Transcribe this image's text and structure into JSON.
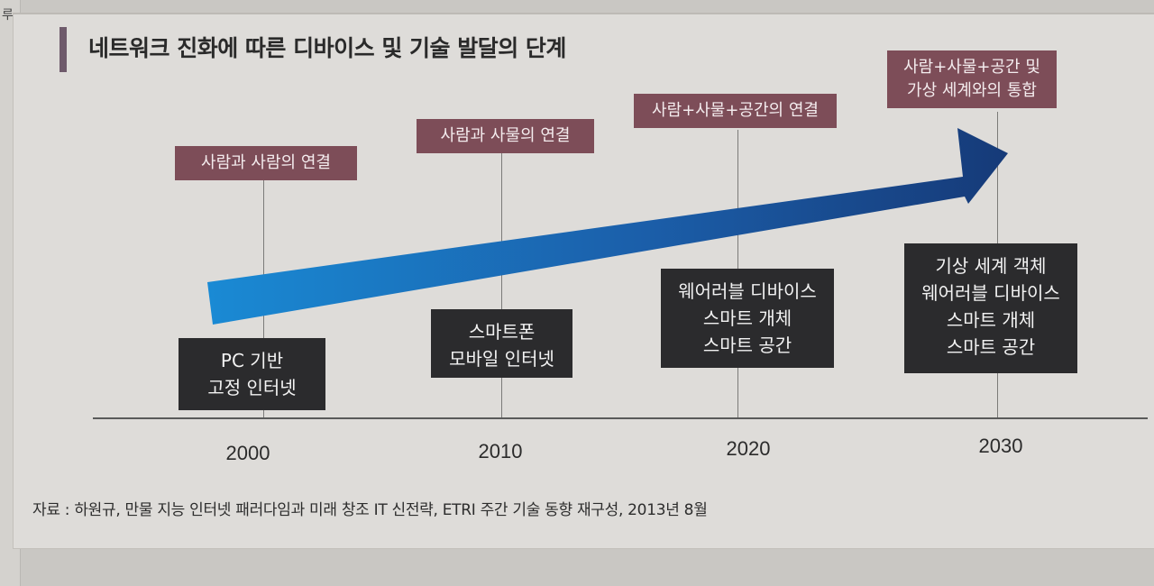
{
  "page_edge_text": "루",
  "title": "네트워크 진화에 따른 디바이스 및 기술 발달의 단계",
  "years": [
    "2000",
    "2010",
    "2020",
    "2030"
  ],
  "connection_labels": [
    "사람과 사람의 연결",
    "사람과 사물의 연결",
    "사람+사물+공간의 연결",
    "사람+사물+공간 및\n가상 세계와의 통합"
  ],
  "device_labels": [
    "PC 기반\n고정 인터넷",
    "스마트폰\n모바일 인터넷",
    "웨어러블 디바이스\n스마트 개체\n스마트 공간",
    "기상 세계 객체\n웨어러블 디바이스\n스마트 개체\n스마트 공간"
  ],
  "source": "자료 : 하원규, 만물 지능 인터넷 패러다임과 미래 창조 IT 신전략, ETRI 주간 기술 동향 재구성, 2013년 8월",
  "colors": {
    "connection_box": "#7d4d58",
    "device_box": "#2b2b2d",
    "arrow_start": "#1a8ad4",
    "arrow_end": "#163a78",
    "title_bar": "#6e5a6b"
  }
}
